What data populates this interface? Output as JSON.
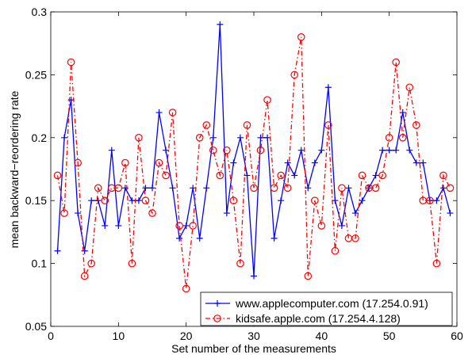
{
  "chart_data": {
    "type": "line",
    "title": "",
    "xlabel": "Set number of the measurements",
    "ylabel": "mean backward−reordering rate",
    "xlim": [
      0,
      60
    ],
    "ylim": [
      0.05,
      0.3
    ],
    "x_ticks": [
      0,
      10,
      20,
      30,
      40,
      50,
      60
    ],
    "y_ticks": [
      0.05,
      0.1,
      0.15,
      0.2,
      0.25,
      0.3
    ],
    "x_tick_labels": [
      "0",
      "10",
      "20",
      "30",
      "40",
      "50",
      "60"
    ],
    "y_tick_labels": [
      "0.05",
      "0.1",
      "0.15",
      "0.2",
      "0.25",
      "0.3"
    ],
    "grid": false,
    "legend_position": "bottom-right",
    "x": [
      1,
      2,
      3,
      4,
      5,
      6,
      7,
      8,
      9,
      10,
      11,
      12,
      13,
      14,
      15,
      16,
      17,
      18,
      19,
      20,
      21,
      22,
      23,
      24,
      25,
      26,
      27,
      28,
      29,
      30,
      31,
      32,
      33,
      34,
      35,
      36,
      37,
      38,
      39,
      40,
      41,
      42,
      43,
      44,
      45,
      46,
      47,
      48,
      49,
      50,
      51,
      52,
      53,
      54,
      55,
      56,
      57,
      58,
      59
    ],
    "series": [
      {
        "name": "www.applecomputer.com (17.254.0.91)",
        "color": "#0000ff",
        "line_style": "solid",
        "marker": "plus",
        "values": [
          0.11,
          0.2,
          0.23,
          0.14,
          0.11,
          0.15,
          0.15,
          0.13,
          0.19,
          0.13,
          0.16,
          0.15,
          0.15,
          0.16,
          0.16,
          0.22,
          0.19,
          0.16,
          0.12,
          0.13,
          0.16,
          0.12,
          0.16,
          0.2,
          0.29,
          0.14,
          0.18,
          0.2,
          0.17,
          0.09,
          0.2,
          0.2,
          0.12,
          0.15,
          0.18,
          0.17,
          0.19,
          0.16,
          0.18,
          0.19,
          0.24,
          0.15,
          0.13,
          0.16,
          0.14,
          0.15,
          0.16,
          0.17,
          0.19,
          0.19,
          0.19,
          0.22,
          0.19,
          0.18,
          0.18,
          0.15,
          0.15,
          0.16,
          0.14
        ]
      },
      {
        "name": "kidsafe.apple.com (17.254.4.128)",
        "color": "#ff0000",
        "line_style": "dashdot",
        "marker": "circle",
        "values": [
          0.17,
          0.14,
          0.26,
          0.18,
          0.09,
          0.1,
          0.16,
          0.15,
          0.16,
          0.16,
          0.18,
          0.1,
          0.2,
          0.15,
          0.14,
          0.18,
          0.17,
          0.22,
          0.13,
          0.08,
          0.13,
          0.2,
          0.21,
          0.19,
          0.17,
          0.19,
          0.15,
          0.1,
          0.21,
          0.16,
          0.19,
          0.23,
          0.16,
          0.17,
          0.16,
          0.25,
          0.28,
          0.09,
          0.15,
          0.13,
          0.21,
          0.11,
          0.16,
          0.12,
          0.12,
          0.17,
          0.16,
          0.16,
          0.17,
          0.2,
          0.26,
          0.2,
          0.24,
          0.21,
          0.15,
          0.15,
          0.1,
          0.17,
          0.16
        ]
      }
    ]
  }
}
